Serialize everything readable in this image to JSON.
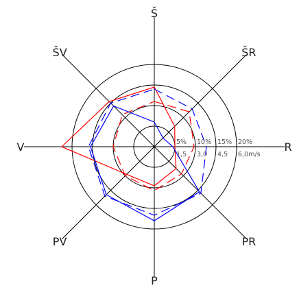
{
  "chart_data": {
    "type": "radar",
    "title": "",
    "directions": [
      "Š",
      "ŠR",
      "R",
      "PR",
      "P",
      "PV",
      "V",
      "ŠV"
    ],
    "rings": {
      "frequency_labels": [
        "5%",
        "10%",
        "15%",
        "20%"
      ],
      "speed_labels": [
        "1,5",
        "3,0",
        "4,5",
        "6,0m/s"
      ],
      "frequency_max": 20,
      "speed_max": 6.0
    },
    "series": [
      {
        "kind": "frequency",
        "color": "#ff0000",
        "style": "solid",
        "unit": "%",
        "values": [
          14.5,
          7.0,
          5.0,
          7.5,
          9.5,
          9.5,
          22.5,
          15.5
        ]
      },
      {
        "kind": "speed",
        "color": "#ff0000",
        "style": "dashed",
        "unit": "m/s",
        "values": [
          3.3,
          3.6,
          2.9,
          2.8,
          3.2,
          3.0,
          3.0,
          3.3
        ]
      },
      {
        "kind": "frequency",
        "color": "#0000ff",
        "style": "solid",
        "unit": "%",
        "values": [
          6.0,
          3.0,
          4.5,
          15.5,
          18.0,
          16.5,
          15.5,
          14.0
        ]
      },
      {
        "kind": "speed",
        "color": "#0000ff",
        "style": "dashed",
        "unit": "m/s",
        "values": [
          4.2,
          3.9,
          3.8,
          4.8,
          5.0,
          5.1,
          4.8,
          4.5
        ]
      }
    ]
  }
}
